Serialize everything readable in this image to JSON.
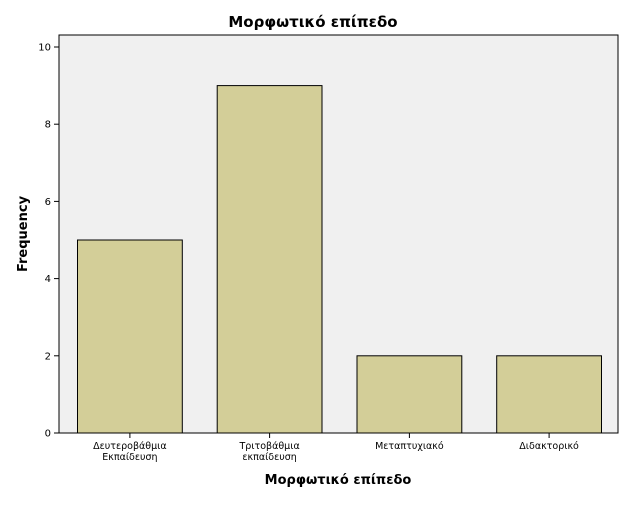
{
  "chart_data": {
    "type": "bar",
    "title": "Μορφωτικό επίπεδο",
    "xlabel": "Μορφωτικό επίπεδο",
    "ylabel": "Frequency",
    "categories": [
      [
        "Δευτεροβάθμια",
        "Εκπαίδευση"
      ],
      [
        "Τριτοβάθμια",
        "εκπαίδευση"
      ],
      [
        "Μεταπτυχιακό"
      ],
      [
        "Διδακτορικό"
      ]
    ],
    "values": [
      5,
      9,
      2,
      2
    ],
    "ylim": [
      0,
      10
    ],
    "yticks": [
      0,
      2,
      4,
      6,
      8,
      10
    ],
    "grid": false,
    "legend": "none",
    "colors": {
      "plot_background": "#f0f0f0",
      "bar_fill": "#d3ce98",
      "bar_stroke": "#000000",
      "axis": "#000000"
    }
  }
}
